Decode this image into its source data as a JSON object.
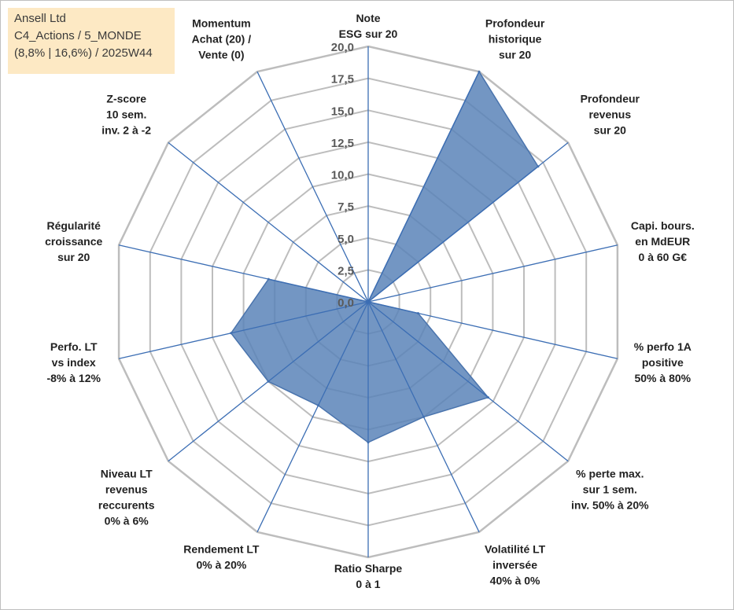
{
  "header": {
    "line1": "Ansell Ltd",
    "line2": "C4_Actions / 5_MONDE",
    "line3": "(8,8% | 16,6%) / 2025W44"
  },
  "colors": {
    "fill": "#5b84b8",
    "stroke": "#4a74ad",
    "axis": "#3c6eb4",
    "grid": "#bdbdbd",
    "title_bg": "#fde9c4"
  },
  "chart_data": {
    "type": "radar",
    "title": "",
    "rmin": 0,
    "rmax": 20,
    "tick_step": 2.5,
    "tick_labels": [
      "0,0",
      "2,5",
      "5,0",
      "7,5",
      "10,0",
      "12,5",
      "15,0",
      "17,5",
      "20,0"
    ],
    "axes": [
      {
        "label": [
          "Note",
          "ESG sur 20"
        ],
        "value": 0
      },
      {
        "label": [
          "Profondeur",
          "historique",
          "sur 20"
        ],
        "value": 20
      },
      {
        "label": [
          "Profondeur",
          "revenus",
          "sur 20"
        ],
        "value": 17
      },
      {
        "label": [
          "Capi. bours.",
          "en MdEUR",
          "0 à 60 G€"
        ],
        "value": 0
      },
      {
        "label": [
          "% perfo 1A",
          "positive",
          "50% à 80%"
        ],
        "value": 4
      },
      {
        "label": [
          "% perte max.",
          "sur 1 sem.",
          "inv. 50% à 20%"
        ],
        "value": 12
      },
      {
        "label": [
          "Volatilité LT",
          "inversée",
          "40% à 0%"
        ],
        "value": 10
      },
      {
        "label": [
          "Ratio Sharpe",
          "0 à 1"
        ],
        "value": 11
      },
      {
        "label": [
          "Rendement LT",
          "0% à 20%"
        ],
        "value": 9
      },
      {
        "label": [
          "Niveau LT",
          "revenus",
          "reccurents",
          "0% à 6%"
        ],
        "value": 10
      },
      {
        "label": [
          "Perfo. LT",
          "vs index",
          "-8% à 12%"
        ],
        "value": 11
      },
      {
        "label": [
          "Régularité",
          "croissance",
          "sur 20"
        ],
        "value": 8
      },
      {
        "label": [
          "Z-score",
          "10 sem.",
          "inv. 2 à -2"
        ],
        "value": 0
      },
      {
        "label": [
          "Momentum",
          "Achat (20) /",
          "Vente (0)"
        ],
        "value": 0
      }
    ]
  }
}
